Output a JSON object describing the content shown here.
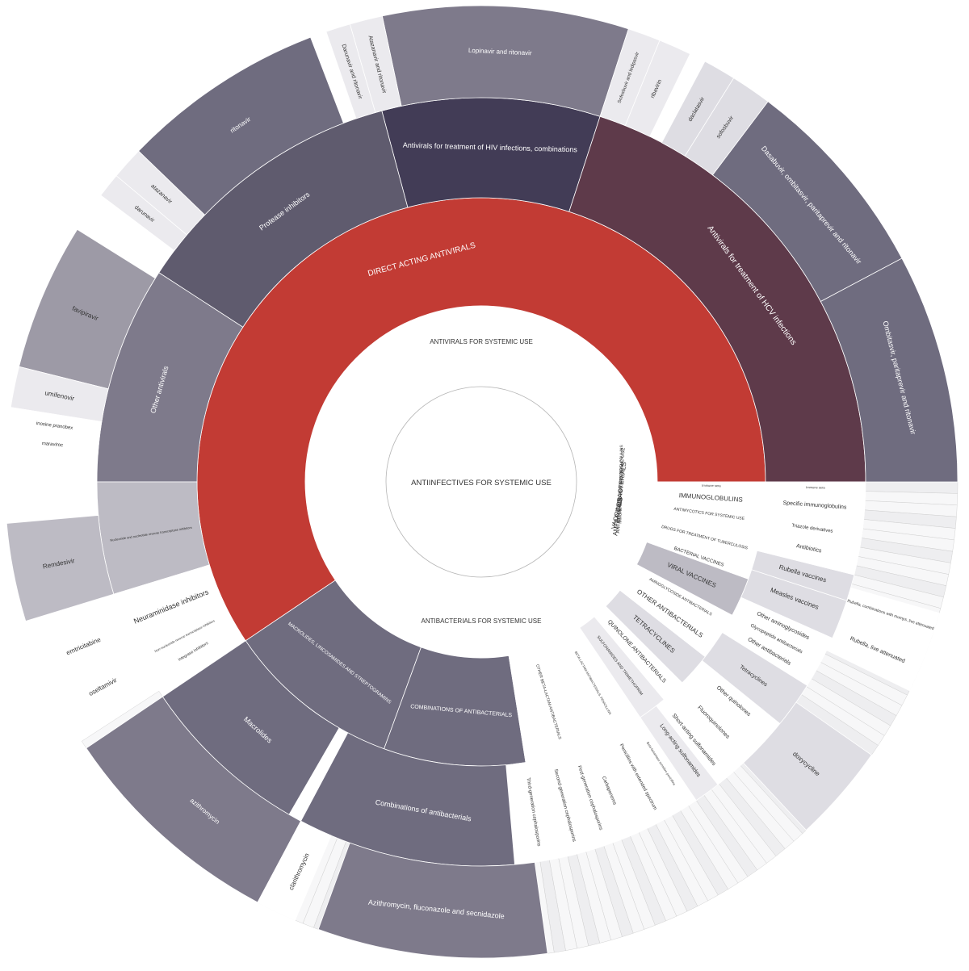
{
  "chart_data": {
    "type": "sunburst",
    "title": "",
    "colors": {
      "antivirals": "#c23b34",
      "hiv_combos": "#423c56",
      "hcv": "#5e3a4a",
      "dark": "#5f5b6e",
      "mid": "#6f6c7f",
      "slate": "#7e7a8b",
      "grey": "#9d9aa6",
      "light": "#bdbbc4",
      "pale": "#dedde3",
      "paler": "#ebeaee",
      "white": "#ffffff",
      "border": "#a8a8a8"
    },
    "center": {
      "label": "ANTIINFECTIVES FOR SYSTEMIC USE"
    },
    "segments": [
      {
        "ring": 1,
        "label": "ANTIVIRALS FOR SYSTEMIC USE",
        "start": 85,
        "end": 252,
        "fill": "white",
        "size": 8,
        "lr": 1,
        "la": 0
      },
      {
        "ring": 1,
        "label": "ANTIBACTERIALS FOR SYSTEMIC USE",
        "start": 113,
        "end": 237,
        "fill": "white",
        "size": 8,
        "lr": 1,
        "la": 180
      },
      {
        "ring": 1,
        "label": "VACCINES",
        "start": 100,
        "end": 113,
        "fill": "white",
        "size": 8,
        "lr": 0.94,
        "la": 103
      },
      {
        "ring": 1,
        "label": "ANTIMYCOBACTERIALS",
        "start": 95,
        "end": 100,
        "fill": "white",
        "size": 8,
        "lr": 1.05,
        "la": 97
      },
      {
        "ring": 1,
        "label": "ANTIMYCOTICS FOR SYSTEMIC USE",
        "start": 92,
        "end": 95,
        "fill": "white",
        "size": 6,
        "lr": 1.15,
        "la": 93.5
      },
      {
        "ring": 1,
        "label": "IMMUNE SERA AND IMMUNOGLOBULINS",
        "start": 90,
        "end": 92,
        "fill": "white",
        "size": 5,
        "lr": 1.15,
        "la": 91
      },
      {
        "ring": 2,
        "label": "DIRECT ACTING ANTIVIRALS",
        "start": 236,
        "end": 450,
        "fill": "antivirals",
        "size": 10,
        "lr": 0.5,
        "la": 345
      },
      {
        "ring": 2,
        "label": "MACROLIDES, LINCOSAMIDES AND STREPTOGRAMINS",
        "start": 200,
        "end": 236,
        "fill": "mid",
        "size": 6,
        "lr": 0,
        "la": 218
      },
      {
        "ring": 2,
        "label": "COMBINATIONS OF ANTIBACTERIALS",
        "start": 171,
        "end": 200,
        "fill": "mid",
        "size": 7,
        "lr": 0,
        "la": 185
      },
      {
        "ring": 2,
        "label": "OTHER BETA-LACTAM ANTIBACTERIALS",
        "start": 156,
        "end": 171,
        "fill": "white",
        "size": 5,
        "lr": 0,
        "la": 163
      },
      {
        "ring": 2,
        "label": "BETA-LACTAM ANTIBACTERIALS, PENICILLINS",
        "start": 146,
        "end": 156,
        "fill": "white",
        "size": 4,
        "lr": 0,
        "la": 151
      },
      {
        "ring": 2,
        "label": "SULFONAMIDES AND TRIMETHOPRIM",
        "start": 140,
        "end": 146,
        "fill": "paler",
        "size": 5,
        "lr": 0,
        "la": 143
      },
      {
        "ring": 2,
        "label": "QUINOLONE ANTIBACTERIALS",
        "start": 135,
        "end": 140,
        "fill": "white",
        "size": 7,
        "lr": 0,
        "la": 137.5
      },
      {
        "ring": 2,
        "label": "TETRACYCLINES",
        "start": 128,
        "end": 135,
        "fill": "pale",
        "size": 8,
        "lr": 0,
        "la": 131.5
      },
      {
        "ring": 2,
        "label": "OTHER ANTIBACTERIALS",
        "start": 122,
        "end": 128,
        "fill": "white",
        "size": 8,
        "lr": 0,
        "la": 125
      },
      {
        "ring": 2,
        "label": "AMINOGLYCOSIDE ANTIBACTERIALS",
        "start": 118,
        "end": 122,
        "fill": "white",
        "size": 5,
        "lr": 0,
        "la": 120
      },
      {
        "ring": 2,
        "label": "VIRAL VACCINES",
        "start": 110,
        "end": 118,
        "fill": "light",
        "size": 8,
        "lr": 0,
        "la": 114
      },
      {
        "ring": 2,
        "label": "BACTERIAL VACCINES",
        "start": 108,
        "end": 110,
        "fill": "white",
        "size": 6,
        "lr": 0,
        "la": 109
      },
      {
        "ring": 2,
        "label": "DRUGS FOR TREATMENT OF TUBERCULOSIS",
        "start": 102,
        "end": 108,
        "fill": "white",
        "size": 5,
        "lr": 0,
        "la": 104
      },
      {
        "ring": 2,
        "label": "ANTIMYCOTICS FOR SYSTEMIC USE",
        "start": 96,
        "end": 102,
        "fill": "white",
        "size": 5,
        "lr": 0,
        "la": 98
      },
      {
        "ring": 2,
        "label": "IMMUNOGLOBULINS",
        "start": 92,
        "end": 96,
        "fill": "white",
        "size": 8,
        "lr": 0,
        "la": 94
      },
      {
        "ring": 2,
        "label": "Immune sera",
        "start": 90,
        "end": 92,
        "fill": "white",
        "size": 4,
        "lr": 0,
        "la": 91
      },
      {
        "ring": 3,
        "label": "Antivirals for treatment of HIV infections, combinations",
        "start": 345,
        "end": 18,
        "fill": "hiv_combos",
        "size": 9,
        "lr": 0,
        "la": 1.5
      },
      {
        "ring": 3,
        "label": "Antivirals for treatment of HCV infections",
        "start": 18,
        "end": 90,
        "fill": "hcv",
        "size": 10,
        "lr": 0,
        "la": 54
      },
      {
        "ring": 3,
        "label": "Protease inhibitors",
        "start": 303,
        "end": 345,
        "fill": "dark",
        "size": 9,
        "lr": 0,
        "la": 324
      },
      {
        "ring": 3,
        "label": "Other antivirals",
        "start": 270,
        "end": 303,
        "fill": "slate",
        "size": 9,
        "lr": 0,
        "la": 286
      },
      {
        "ring": 3,
        "label": "Nucleoside and nucleotide reverse transcriptase inhibitors",
        "start": 253,
        "end": 270,
        "fill": "light",
        "size": 4,
        "lr": 0,
        "la": 261
      },
      {
        "ring": 3,
        "label": "Neuraminidase inhibitors",
        "start": 244,
        "end": 253,
        "fill": "white",
        "size": 9,
        "lr": 0,
        "la": 248
      },
      {
        "ring": 3,
        "label": "Non-nucleoside reverse transcriptase inhibitors",
        "start": 241,
        "end": 244,
        "fill": "white",
        "size": 4,
        "lr": 0,
        "la": 242.5
      },
      {
        "ring": 3,
        "label": "Integrase inhibitors",
        "start": 238,
        "end": 241,
        "fill": "white",
        "size": 5,
        "lr": 0,
        "la": 239.5
      },
      {
        "ring": 3,
        "label": "Macrolides",
        "start": 210,
        "end": 236,
        "fill": "mid",
        "size": 9,
        "lr": 0,
        "la": 222
      },
      {
        "ring": 3,
        "label": "Combinations of antibacterials",
        "start": 175,
        "end": 208,
        "fill": "mid",
        "size": 9,
        "lr": 0,
        "la": 190
      },
      {
        "ring": 3,
        "label": "Third-generation cephalosporins",
        "start": 168,
        "end": 174,
        "fill": "white",
        "size": 6,
        "lr": 0,
        "la": 171
      },
      {
        "ring": 3,
        "label": "Second-generation cephalosporins",
        "start": 163,
        "end": 168,
        "fill": "white",
        "size": 6,
        "lr": 0,
        "la": 165.5
      },
      {
        "ring": 3,
        "label": "First-generation cephalosporins",
        "start": 159,
        "end": 163,
        "fill": "white",
        "size": 6,
        "lr": 0,
        "la": 161
      },
      {
        "ring": 3,
        "label": "Carbapenems",
        "start": 156,
        "end": 159,
        "fill": "white",
        "size": 6,
        "lr": 0,
        "la": 157.5
      },
      {
        "ring": 3,
        "label": "Penicillins with extended spectrum",
        "start": 149,
        "end": 156,
        "fill": "white",
        "size": 6,
        "lr": 0,
        "la": 152
      },
      {
        "ring": 3,
        "label": "Beta-lactamase sensitive penicillins",
        "start": 146,
        "end": 149,
        "fill": "white",
        "size": 4,
        "lr": 0,
        "la": 147.5
      },
      {
        "ring": 3,
        "label": "Long-acting sulfonamides",
        "start": 142,
        "end": 146,
        "fill": "paler",
        "size": 7,
        "lr": 0,
        "la": 143.5
      },
      {
        "ring": 3,
        "label": "Short-acting sulfonamides",
        "start": 139,
        "end": 142,
        "fill": "white",
        "size": 7,
        "lr": 0,
        "la": 140.5
      },
      {
        "ring": 3,
        "label": "Fluoroquinolones",
        "start": 134,
        "end": 139,
        "fill": "white",
        "size": 7,
        "lr": 0,
        "la": 136
      },
      {
        "ring": 3,
        "label": "Other quinolones",
        "start": 129,
        "end": 134,
        "fill": "white",
        "size": 7,
        "lr": 0,
        "la": 131
      },
      {
        "ring": 3,
        "label": "Tetracyclines",
        "start": 122,
        "end": 129,
        "fill": "pale",
        "size": 7,
        "lr": 0,
        "la": 125.5
      },
      {
        "ring": 3,
        "label": "Other antibacterials",
        "start": 119,
        "end": 122,
        "fill": "white",
        "size": 7,
        "lr": 0,
        "la": 120.5
      },
      {
        "ring": 3,
        "label": "Glycopeptide antibacterials",
        "start": 117,
        "end": 119,
        "fill": "white",
        "size": 6,
        "lr": 0,
        "la": 118
      },
      {
        "ring": 3,
        "label": "Other aminoglycosides",
        "start": 114,
        "end": 117,
        "fill": "white",
        "size": 7,
        "lr": 0,
        "la": 115.5
      },
      {
        "ring": 3,
        "label": "Measles vaccines",
        "start": 108,
        "end": 114,
        "fill": "pale",
        "size": 8,
        "lr": 0,
        "la": 110.5
      },
      {
        "ring": 3,
        "label": "Rubella vaccines",
        "start": 104,
        "end": 108,
        "fill": "pale",
        "size": 8,
        "lr": 0,
        "la": 106
      },
      {
        "ring": 3,
        "label": "Antibiotics",
        "start": 100,
        "end": 104,
        "fill": "white",
        "size": 7,
        "lr": 0,
        "la": 101.5
      },
      {
        "ring": 3,
        "label": "Triazole derivatives",
        "start": 97,
        "end": 100,
        "fill": "white",
        "size": 6,
        "lr": 0,
        "la": 98
      },
      {
        "ring": 3,
        "label": "Specific immunoglobulins",
        "start": 92,
        "end": 97,
        "fill": "white",
        "size": 7,
        "lr": 0,
        "la": 94
      },
      {
        "ring": 3,
        "label": "Immune sera",
        "start": 90,
        "end": 92,
        "fill": "white",
        "size": 4,
        "lr": 0,
        "la": 91
      },
      {
        "ring": 4,
        "label": "Lopinavir and ritonavir",
        "start": 348,
        "end": 18,
        "fill": "slate",
        "size": 8,
        "lr": 0,
        "la": 2.5
      },
      {
        "ring": 4,
        "label": "Atazanavir and ritonavir",
        "start": 344,
        "end": 348,
        "fill": "paler",
        "size": 7,
        "lr": 0,
        "la": 346
      },
      {
        "ring": 4,
        "label": "Darunavir and ritonavir",
        "start": 341,
        "end": 344,
        "fill": "paler",
        "size": 7,
        "lr": 0,
        "la": 342.5
      },
      {
        "ring": 4,
        "label": "Sofosbuvir and ledipasvir",
        "start": 18,
        "end": 22,
        "fill": "paler",
        "size": 6,
        "lr": 0,
        "la": 20
      },
      {
        "ring": 4,
        "label": "ribavirin",
        "start": 22,
        "end": 26,
        "fill": "paler",
        "size": 7,
        "lr": 0,
        "la": 24
      },
      {
        "ring": 4,
        "label": "daclatasvir",
        "start": 28,
        "end": 32,
        "fill": "pale",
        "size": 7,
        "lr": 0,
        "la": 30
      },
      {
        "ring": 4,
        "label": "sofosbuvir",
        "start": 32,
        "end": 37,
        "fill": "pale",
        "size": 7,
        "lr": 0,
        "la": 34.5
      },
      {
        "ring": 4,
        "label": "Dasabuvir, ombitasvir, paritaprevir and ritonavir",
        "start": 37,
        "end": 62,
        "fill": "mid",
        "size": 9,
        "lr": 0,
        "la": 50
      },
      {
        "ring": 4,
        "label": "Ombitasvir, paritaprevir and ritonavir",
        "start": 62,
        "end": 90,
        "fill": "mid",
        "size": 9,
        "lr": 0,
        "la": 76
      },
      {
        "ring": 4,
        "label": "ritonavir",
        "start": 314,
        "end": 339,
        "fill": "mid",
        "size": 8,
        "lr": 0,
        "la": 326
      },
      {
        "ring": 4,
        "label": "atazanavir",
        "start": 310,
        "end": 314,
        "fill": "paler",
        "size": 7,
        "lr": 0,
        "la": 312
      },
      {
        "ring": 4,
        "label": "darunavir",
        "start": 307,
        "end": 310,
        "fill": "paler",
        "size": 7,
        "lr": 0,
        "la": 308.5
      },
      {
        "ring": 4,
        "label": "favipiravir",
        "start": 284,
        "end": 302,
        "fill": "grey",
        "size": 8,
        "lr": 0,
        "la": 293
      },
      {
        "ring": 4,
        "label": "umifenovir",
        "start": 279,
        "end": 284,
        "fill": "paler",
        "size": 8,
        "lr": 0,
        "la": 281.5
      },
      {
        "ring": 4,
        "label": "inosine pranobex",
        "start": 276,
        "end": 279,
        "fill": "white",
        "size": 6,
        "lr": 0,
        "la": 277.5
      },
      {
        "ring": 4,
        "label": "maraviroc",
        "start": 274,
        "end": 276,
        "fill": "white",
        "size": 6,
        "lr": 0,
        "la": 275
      },
      {
        "ring": 4,
        "label": "Remdesivir",
        "start": 253,
        "end": 265,
        "fill": "light",
        "size": 8,
        "lr": 0,
        "la": 259
      },
      {
        "ring": 4,
        "label": "emtricitabine",
        "start": 245,
        "end": 250,
        "fill": "white",
        "size": 8,
        "lr": 0,
        "la": 247.5
      },
      {
        "ring": 4,
        "label": "oseltamivir",
        "start": 238,
        "end": 245,
        "fill": "white",
        "size": 8,
        "lr": 0,
        "la": 241.5
      },
      {
        "ring": 4,
        "label": "azithromycin",
        "start": 208,
        "end": 236,
        "fill": "slate",
        "size": 8,
        "lr": 0,
        "la": 220
      },
      {
        "ring": 4,
        "label": "clarithromycin",
        "start": 203,
        "end": 208,
        "fill": "white",
        "size": 8,
        "lr": 0,
        "la": 205
      },
      {
        "ring": 4,
        "label": "Azithromycin, fluconazole and secnidazole",
        "start": 172,
        "end": 200,
        "fill": "slate",
        "size": 9,
        "lr": 0,
        "la": 186
      },
      {
        "ring": 4,
        "label": "doxycycline",
        "start": 125,
        "end": 137,
        "fill": "pale",
        "size": 8,
        "lr": 0,
        "la": 131
      },
      {
        "ring": 4,
        "label": "Rubella, live attenuated",
        "start": 110,
        "end": 116,
        "fill": "white",
        "size": 7,
        "lr": 0,
        "la": 113
      },
      {
        "ring": 4,
        "label": "Rubella, combinations with mumps, live attenuated",
        "start": 106,
        "end": 110,
        "fill": "white",
        "size": 5,
        "lr": 0,
        "la": 108
      }
    ]
  }
}
